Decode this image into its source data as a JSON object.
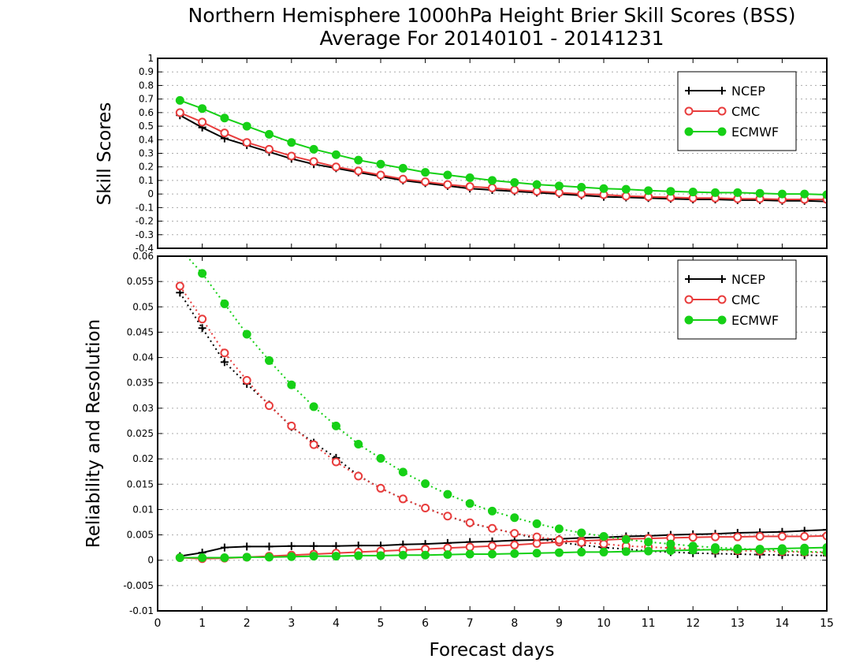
{
  "title_line1": "Northern Hemisphere 1000hPa Height Brier Skill Scores (BSS)",
  "title_line2": "Average For 20140101 - 20141231",
  "xlabel": "Forecast days",
  "colors": {
    "NCEP": "#000000",
    "CMC": "#e83c3c",
    "ECMWF": "#16d016",
    "grid": "#aaaaaa"
  },
  "chart_data": [
    {
      "type": "line",
      "ylabel": "Skill Scores",
      "xlim": [
        0,
        15
      ],
      "ylim": [
        -0.4,
        1
      ],
      "xticks": [
        "0",
        "1",
        "2",
        "3",
        "4",
        "5",
        "6",
        "7",
        "8",
        "9",
        "10",
        "11",
        "12",
        "13",
        "14",
        "15"
      ],
      "yticks": [
        "-0.4",
        "-0.3",
        "-0.2",
        "-0.1",
        "0",
        "0.1",
        "0.2",
        "0.3",
        "0.4",
        "0.5",
        "0.6",
        "0.7",
        "0.8",
        "0.9",
        "1"
      ],
      "grid": true,
      "legend": {
        "position": "top-right",
        "entries": [
          "NCEP",
          "CMC",
          "ECMWF"
        ]
      },
      "x": [
        0.5,
        1,
        1.5,
        2,
        2.5,
        3,
        3.5,
        4,
        4.5,
        5,
        5.5,
        6,
        6.5,
        7,
        7.5,
        8,
        8.5,
        9,
        9.5,
        10,
        10.5,
        11,
        11.5,
        12,
        12.5,
        13,
        13.5,
        14,
        14.5,
        15
      ],
      "series": [
        {
          "name": "NCEP",
          "marker": "plus",
          "style": "solid",
          "values": [
            0.58,
            0.49,
            0.41,
            0.36,
            0.31,
            0.26,
            0.22,
            0.19,
            0.16,
            0.13,
            0.1,
            0.08,
            0.06,
            0.04,
            0.03,
            0.02,
            0.01,
            0,
            -0.01,
            -0.02,
            -0.025,
            -0.03,
            -0.035,
            -0.04,
            -0.04,
            -0.045,
            -0.045,
            -0.05,
            -0.05,
            -0.055
          ]
        },
        {
          "name": "CMC",
          "marker": "circle-open",
          "style": "solid",
          "values": [
            0.6,
            0.53,
            0.45,
            0.38,
            0.33,
            0.28,
            0.24,
            0.2,
            0.17,
            0.14,
            0.11,
            0.09,
            0.07,
            0.055,
            0.045,
            0.03,
            0.02,
            0.01,
            0,
            -0.005,
            -0.015,
            -0.02,
            -0.025,
            -0.03,
            -0.03,
            -0.035,
            -0.035,
            -0.04,
            -0.04,
            -0.04
          ]
        },
        {
          "name": "ECMWF",
          "marker": "circle-filled",
          "style": "solid",
          "values": [
            0.69,
            0.63,
            0.56,
            0.5,
            0.44,
            0.38,
            0.33,
            0.29,
            0.25,
            0.22,
            0.19,
            0.16,
            0.14,
            0.12,
            0.1,
            0.085,
            0.07,
            0.06,
            0.05,
            0.04,
            0.035,
            0.025,
            0.02,
            0.015,
            0.01,
            0.01,
            0.005,
            0,
            0,
            -0.005
          ]
        }
      ]
    },
    {
      "type": "line",
      "ylabel": "Reliability and Resolution",
      "xlim": [
        0,
        15
      ],
      "ylim": [
        -0.01,
        0.06
      ],
      "xticks": [
        "0",
        "1",
        "2",
        "3",
        "4",
        "5",
        "6",
        "7",
        "8",
        "9",
        "10",
        "11",
        "12",
        "13",
        "14",
        "15"
      ],
      "yticks": [
        "-0.01",
        "-0.005",
        "0",
        "0.005",
        "0.01",
        "0.015",
        "0.02",
        "0.025",
        "0.03",
        "0.035",
        "0.04",
        "0.045",
        "0.05",
        "0.055",
        "0.06"
      ],
      "grid": true,
      "legend": {
        "position": "top-right",
        "entries": [
          "NCEP",
          "CMC",
          "ECMWF"
        ]
      },
      "x": [
        0.5,
        1,
        1.5,
        2,
        2.5,
        3,
        3.5,
        4,
        4.5,
        5,
        5.5,
        6,
        6.5,
        7,
        7.5,
        8,
        8.5,
        9,
        9.5,
        10,
        10.5,
        11,
        11.5,
        12,
        12.5,
        13,
        13.5,
        14,
        14.5,
        15
      ],
      "series": [
        {
          "name": "NCEP",
          "metric": "reliability",
          "marker": "plus",
          "style": "solid",
          "values": [
            0.0008,
            0.0015,
            0.0025,
            0.0027,
            0.0027,
            0.0028,
            0.0028,
            0.0028,
            0.0029,
            0.0029,
            0.0031,
            0.0032,
            0.0034,
            0.0036,
            0.0037,
            0.0039,
            0.004,
            0.0042,
            0.0044,
            0.0045,
            0.0047,
            0.0048,
            0.005,
            0.0051,
            0.0052,
            0.0054,
            0.0055,
            0.0056,
            0.0058,
            0.006
          ]
        },
        {
          "name": "NCEP",
          "metric": "resolution",
          "marker": "plus",
          "style": "dotted",
          "values": [
            0.0528,
            0.0458,
            0.0391,
            0.0348,
            0.0307,
            0.0263,
            0.0232,
            0.0202,
            0.0167,
            0.0142,
            0.0121,
            0.0103,
            0.0087,
            0.0073,
            0.0063,
            0.0053,
            0.0043,
            0.0035,
            0.003,
            0.0025,
            0.0022,
            0.0018,
            0.0016,
            0.0014,
            0.0013,
            0.0012,
            0.0011,
            0.001,
            0.001,
            0.0009
          ]
        },
        {
          "name": "CMC",
          "metric": "reliability",
          "marker": "circle-open",
          "style": "solid",
          "values": [
            0.0005,
            0.0003,
            0.0004,
            0.0006,
            0.0008,
            0.001,
            0.0012,
            0.0014,
            0.0016,
            0.0018,
            0.002,
            0.0022,
            0.0024,
            0.0026,
            0.0028,
            0.003,
            0.0033,
            0.0036,
            0.0038,
            0.004,
            0.0042,
            0.0043,
            0.0044,
            0.0045,
            0.0046,
            0.0046,
            0.0047,
            0.0047,
            0.0047,
            0.0048
          ]
        },
        {
          "name": "CMC",
          "metric": "resolution",
          "marker": "circle-open",
          "style": "dotted",
          "values": [
            0.0541,
            0.0476,
            0.0409,
            0.0355,
            0.0305,
            0.0265,
            0.0228,
            0.0194,
            0.0166,
            0.0142,
            0.0121,
            0.0103,
            0.0087,
            0.0074,
            0.0063,
            0.0053,
            0.0046,
            0.004,
            0.0035,
            0.0032,
            0.0028,
            0.0026,
            0.0024,
            0.0022,
            0.002,
            0.0019,
            0.0018,
            0.0017,
            0.0016,
            0.0015
          ]
        },
        {
          "name": "ECMWF",
          "metric": "reliability",
          "marker": "circle-filled",
          "style": "solid",
          "values": [
            0.0005,
            0.0005,
            0.0005,
            0.0006,
            0.0006,
            0.0007,
            0.0008,
            0.0008,
            0.0009,
            0.0009,
            0.001,
            0.001,
            0.0011,
            0.0012,
            0.0012,
            0.0013,
            0.0014,
            0.0015,
            0.0016,
            0.0016,
            0.0017,
            0.0018,
            0.0019,
            0.002,
            0.0021,
            0.0021,
            0.0022,
            0.0023,
            0.0024,
            0.0025
          ]
        },
        {
          "name": "ECMWF",
          "metric": "resolution",
          "marker": "circle-filled",
          "style": "dotted",
          "values": [
            0.0615,
            0.0566,
            0.0506,
            0.0446,
            0.0394,
            0.0346,
            0.0303,
            0.0265,
            0.0229,
            0.0201,
            0.0174,
            0.0151,
            0.013,
            0.0112,
            0.0097,
            0.0084,
            0.0072,
            0.0062,
            0.0054,
            0.0047,
            0.0041,
            0.0036,
            0.0032,
            0.0028,
            0.0025,
            0.0023,
            0.0021,
            0.0019,
            0.0017,
            0.0016
          ]
        }
      ]
    }
  ]
}
